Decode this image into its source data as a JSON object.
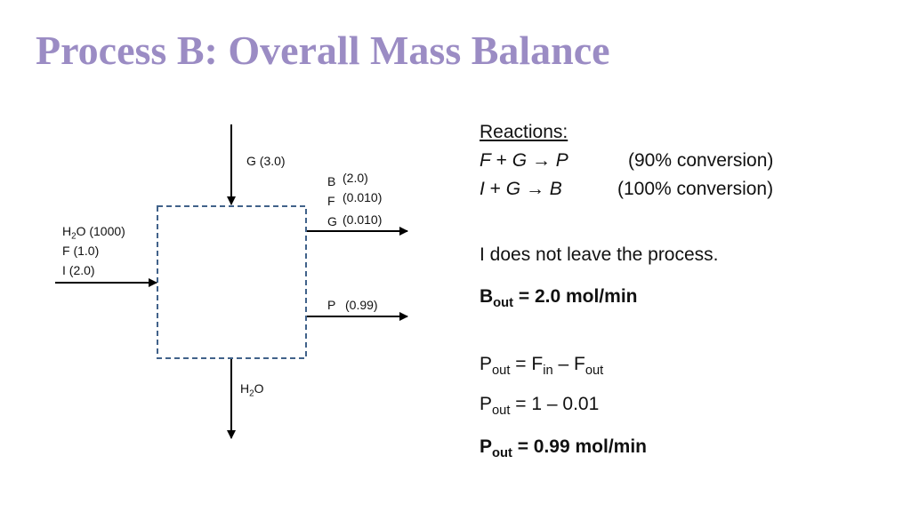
{
  "title": "Process B: Overall Mass Balance",
  "diagram": {
    "feed_g_label": "G (3.0)",
    "top_out": {
      "b_name": "B",
      "b_value": "(2.0)",
      "f_name": "F",
      "f_value": "(0.010)",
      "g_name": "G",
      "g_value": "(0.010)"
    },
    "left_in": {
      "h2o_main": "H",
      "h2o_sub": "2",
      "h2o_tail": "O (1000)",
      "f_label": "F (1.0)",
      "i_label": "I (2.0)"
    },
    "product": {
      "p_name": "P",
      "p_value": "(0.99)"
    },
    "bottom_out": {
      "main": "H",
      "sub": "2",
      "tail": "O"
    },
    "colors": {
      "box_border": "#41628a",
      "arrow": "#000000"
    }
  },
  "notes": {
    "reactions_heading": "Reactions:",
    "reaction1": {
      "lhs1": "F",
      "plus": " + ",
      "lhs2": "G",
      "arrow": " → ",
      "rhs": "P",
      "conversion": "(90% conversion)"
    },
    "reaction2": {
      "lhs1": "I",
      "plus": " + ",
      "lhs2": "G",
      "arrow": " → ",
      "rhs": "B",
      "conversion": "(100% conversion)"
    },
    "statement": "I does not leave the process.",
    "b_out": {
      "main": "B",
      "sub": "out",
      "rest": " = 2.0 mol/min"
    },
    "p_eq1": {
      "p": "P",
      "p_sub": "out",
      "mid": " = F",
      "f1_sub": "in",
      "dash": " – F",
      "f2_sub": "out"
    },
    "p_eq2": {
      "p": "P",
      "p_sub": "out",
      "rest": " = 1 – 0.01"
    },
    "p_eq3": {
      "p": "P",
      "p_sub": "out",
      "rest": " = 0.99 mol/min"
    }
  },
  "color_title": "#9b8cc4"
}
